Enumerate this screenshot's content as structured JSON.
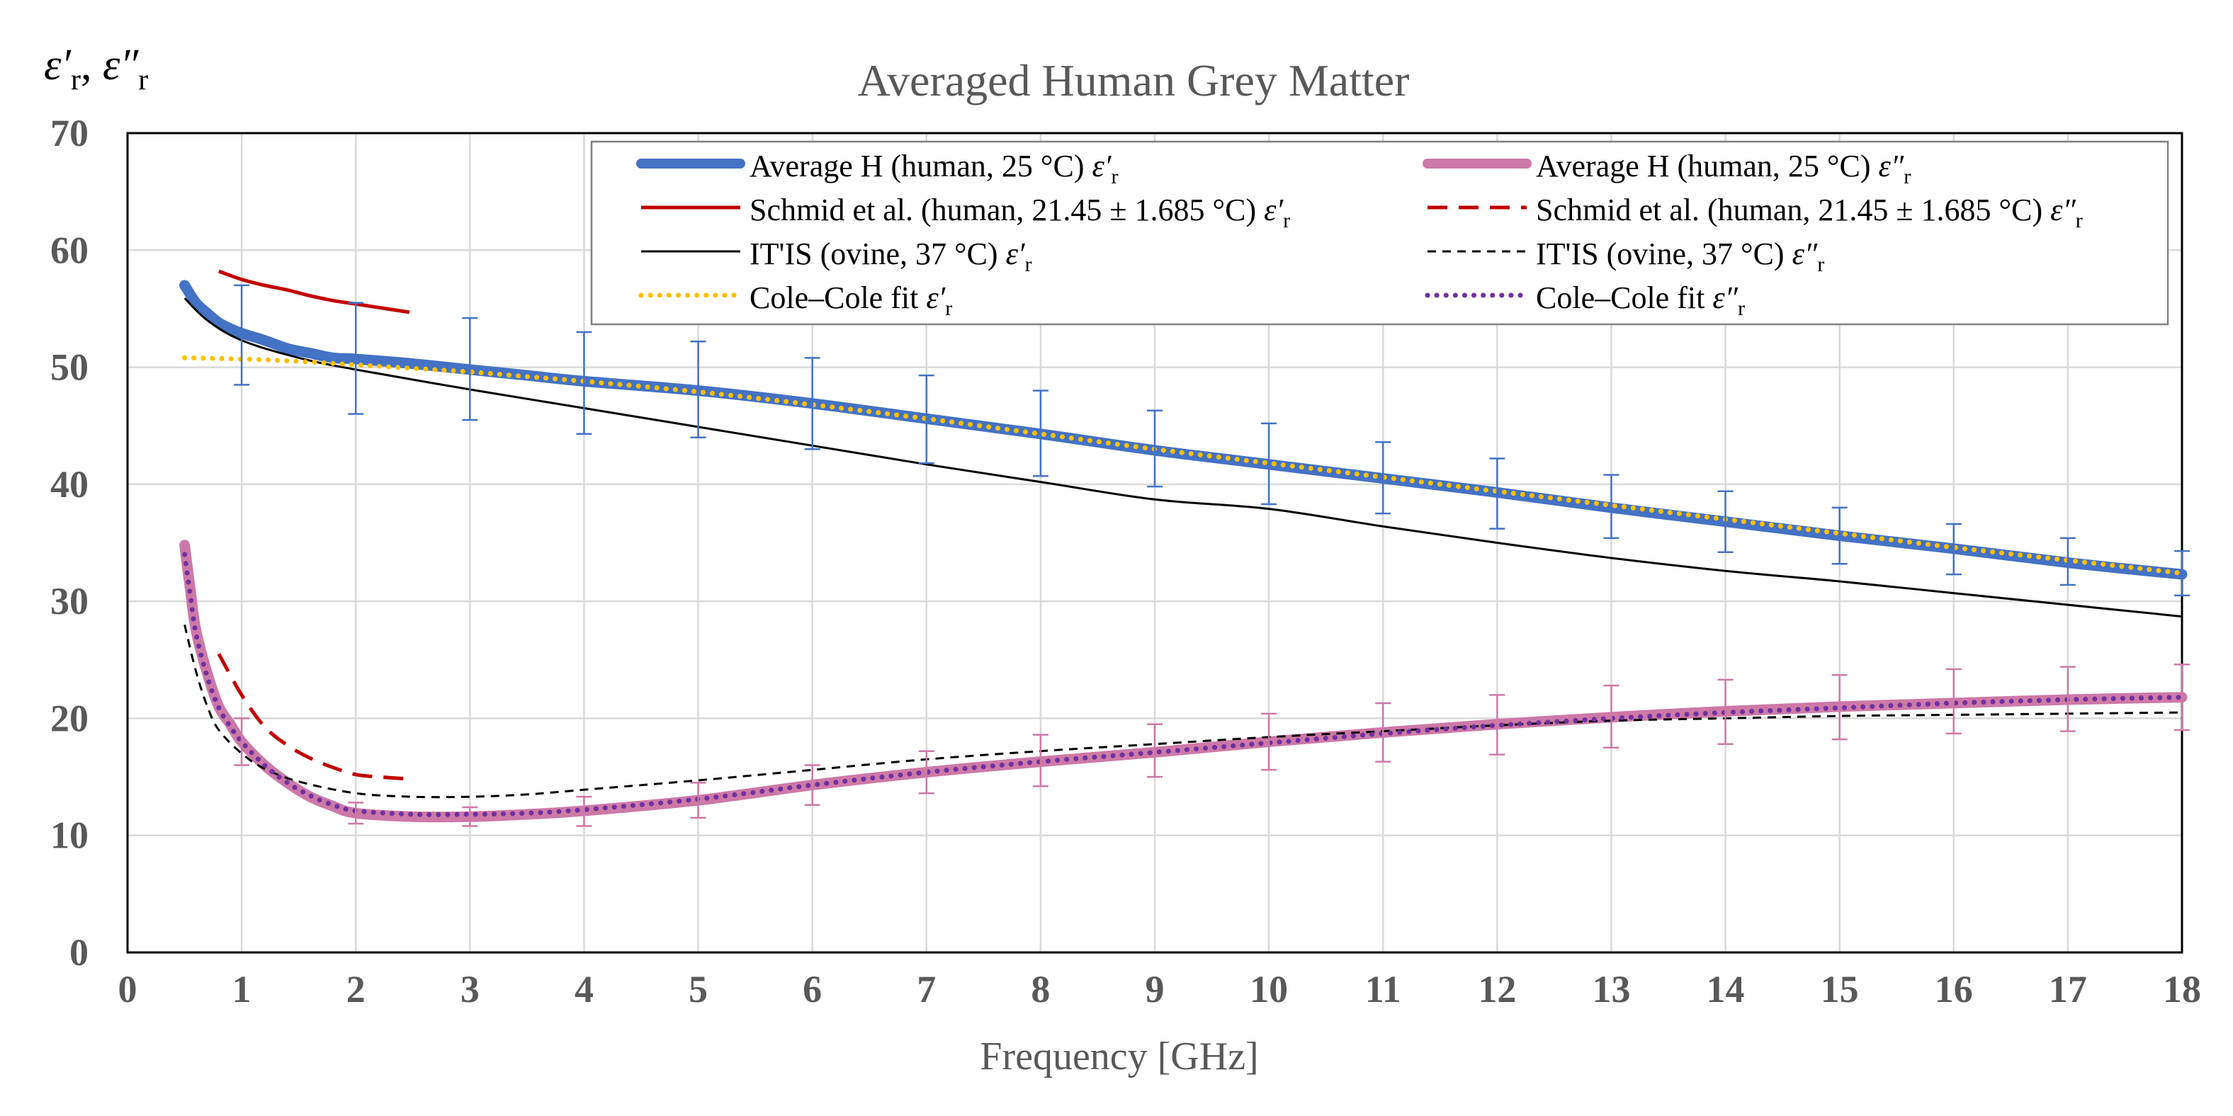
{
  "chart_data": {
    "type": "line",
    "title": "Averaged Human Grey Matter",
    "xlabel": "Frequency [GHz]",
    "ylabel": "ε′r, ε″r",
    "ylabel_parts": {
      "eps1": "ε′",
      "sub1": "r",
      "sep": ", ",
      "eps2": "ε″",
      "sub2": "r"
    },
    "xlim": [
      0,
      18
    ],
    "ylim": [
      0,
      70
    ],
    "xticks": [
      0,
      1,
      2,
      3,
      4,
      5,
      6,
      7,
      8,
      9,
      10,
      11,
      12,
      13,
      14,
      15,
      16,
      17,
      18
    ],
    "yticks": [
      0,
      10,
      20,
      30,
      40,
      50,
      60,
      70
    ],
    "grid": true,
    "legend_position": "top-right",
    "colors": {
      "blue": "#4472c4",
      "pink": "#cc79a7",
      "red": "#c00000",
      "black": "#000000",
      "gold": "#ffc000",
      "purple": "#7030a0",
      "grid": "#d9d9d9",
      "text": "#595959"
    },
    "series": [
      {
        "name": "Average H (human, 25 °C) ε′r",
        "legend_main": "Average H (human, 25 °C) ",
        "legend_sym": "ε′",
        "legend_sub": "r",
        "style": "thick-blue",
        "x": [
          0.5,
          0.6,
          0.7,
          0.8,
          0.9,
          1.0,
          1.2,
          1.4,
          1.6,
          1.8,
          2.0,
          2.5,
          3.0,
          3.5,
          4.0,
          5.0,
          6.0,
          7.0,
          8.0,
          9.0,
          10.0,
          11.0,
          12.0,
          13.0,
          14.0,
          15.0,
          16.0,
          17.0,
          18.0
        ],
        "y": [
          57.0,
          55.5,
          54.6,
          53.8,
          53.3,
          52.9,
          52.3,
          51.6,
          51.2,
          50.8,
          50.7,
          50.3,
          49.8,
          49.3,
          48.8,
          48.0,
          46.9,
          45.6,
          44.3,
          42.9,
          41.7,
          40.5,
          39.3,
          38.0,
          36.8,
          35.6,
          34.5,
          33.3,
          32.3
        ]
      },
      {
        "name": "Average H (human, 25 °C) ε″r",
        "legend_main": "Average H (human, 25 °C) ",
        "legend_sym": "ε″",
        "legend_sub": "r",
        "style": "thick-pink",
        "x": [
          0.5,
          0.55,
          0.6,
          0.7,
          0.8,
          0.9,
          1.0,
          1.2,
          1.4,
          1.6,
          1.8,
          2.0,
          2.5,
          3.0,
          3.5,
          4.0,
          5.0,
          6.0,
          7.0,
          8.0,
          9.0,
          10.0,
          11.0,
          12.0,
          13.0,
          14.0,
          15.0,
          16.0,
          17.0,
          18.0
        ],
        "y": [
          34.8,
          31.0,
          27.5,
          23.8,
          21.0,
          19.5,
          18.0,
          16.0,
          14.5,
          13.3,
          12.5,
          11.9,
          11.6,
          11.6,
          11.8,
          12.1,
          13.0,
          14.3,
          15.4,
          16.3,
          17.1,
          18.0,
          18.8,
          19.5,
          20.1,
          20.6,
          21.0,
          21.3,
          21.6,
          21.8
        ]
      },
      {
        "name": "Schmid et al. (human, 21.45 ± 1.685 °C) ε′r",
        "legend_main": "Schmid et al. (human, 21.45   ± 1.685 °C) ",
        "legend_sym": "ε′",
        "legend_sub": "r",
        "style": "solid-red",
        "x": [
          0.8,
          1.0,
          1.2,
          1.4,
          1.6,
          1.8,
          2.0,
          2.2,
          2.47
        ],
        "y": [
          58.2,
          57.5,
          57.0,
          56.6,
          56.1,
          55.7,
          55.4,
          55.1,
          54.7
        ]
      },
      {
        "name": "Schmid et al. (human, 21.45 ± 1.685 °C) ε″r",
        "legend_main": "Schmid et al. (human, 21.45   ± 1.685 °C) ",
        "legend_sym": "ε″",
        "legend_sub": "r",
        "style": "dashed-red",
        "x": [
          0.8,
          1.0,
          1.2,
          1.4,
          1.6,
          1.8,
          2.0,
          2.2,
          2.5
        ],
        "y": [
          25.5,
          22.0,
          19.3,
          17.7,
          16.6,
          15.8,
          15.2,
          15.0,
          14.8
        ]
      },
      {
        "name": "IT'IS (ovine, 37 °C) ε′r",
        "legend_main": "IT'IS (ovine, 37 °C) ",
        "legend_sym": "ε′",
        "legend_sub": "r",
        "style": "solid-black",
        "x": [
          0.5,
          0.7,
          1.0,
          1.5,
          2.0,
          3.0,
          4.0,
          5.0,
          6.0,
          7.0,
          8.0,
          9.0,
          10.0,
          11.0,
          12.0,
          13.0,
          14.0,
          15.0,
          16.0,
          17.0,
          18.0
        ],
        "y": [
          55.9,
          54.0,
          52.3,
          50.8,
          49.8,
          48.1,
          46.5,
          44.9,
          43.3,
          41.7,
          40.2,
          38.7,
          37.9,
          36.4,
          35.0,
          33.7,
          32.6,
          31.7,
          30.7,
          29.7,
          28.7
        ]
      },
      {
        "name": "IT'IS (ovine, 37 °C) ε″r",
        "legend_main": "IT'IS (ovine, 37 °C) ",
        "legend_sym": "ε″",
        "legend_sub": "r",
        "style": "dashed-black",
        "x": [
          0.5,
          0.6,
          0.7,
          0.8,
          1.0,
          1.2,
          1.5,
          2.0,
          2.5,
          3.0,
          3.5,
          4.0,
          5.0,
          6.0,
          7.0,
          8.0,
          9.0,
          10.0,
          11.0,
          12.0,
          13.0,
          14.0,
          15.0,
          16.0,
          17.0,
          18.0
        ],
        "y": [
          28.0,
          24.0,
          21.0,
          19.0,
          17.0,
          15.7,
          14.6,
          13.6,
          13.3,
          13.3,
          13.5,
          13.9,
          14.7,
          15.6,
          16.5,
          17.2,
          17.8,
          18.4,
          18.9,
          19.4,
          19.8,
          20.0,
          20.2,
          20.3,
          20.4,
          20.5
        ]
      },
      {
        "name": "Cole–Cole fit ε′r",
        "legend_main": "Cole–Cole fit  ",
        "legend_sym": "ε′",
        "legend_sub": "r",
        "style": "dotted-gold",
        "x": [
          0.5,
          1.0,
          1.5,
          2.0,
          2.5,
          3.0,
          3.5,
          4.0,
          5.0,
          6.0,
          7.0,
          8.0,
          9.0,
          10.0,
          11.0,
          12.0,
          13.0,
          14.0,
          15.0,
          16.0,
          17.0,
          18.0
        ],
        "y": [
          50.8,
          50.7,
          50.5,
          50.2,
          49.9,
          49.6,
          49.2,
          48.8,
          47.9,
          46.8,
          45.6,
          44.3,
          43.0,
          41.8,
          40.6,
          39.4,
          38.2,
          37.0,
          35.8,
          34.6,
          33.5,
          32.4
        ]
      },
      {
        "name": "Cole–Cole fit ε″r",
        "legend_main": "Cole–Cole fit  ",
        "legend_sym": "ε″",
        "legend_sub": "r",
        "style": "dotted-purple",
        "x": [
          0.5,
          0.55,
          0.6,
          0.7,
          0.8,
          0.9,
          1.0,
          1.2,
          1.4,
          1.6,
          1.8,
          2.0,
          2.5,
          3.0,
          3.5,
          4.0,
          5.0,
          6.0,
          7.0,
          8.0,
          9.0,
          10.0,
          11.0,
          12.0,
          13.0,
          14.0,
          15.0,
          16.0,
          17.0,
          18.0
        ],
        "y": [
          34.0,
          30.5,
          27.2,
          23.5,
          20.9,
          19.3,
          18.0,
          16.0,
          14.5,
          13.4,
          12.6,
          12.1,
          11.8,
          11.8,
          11.9,
          12.2,
          13.1,
          14.3,
          15.4,
          16.3,
          17.1,
          17.9,
          18.7,
          19.4,
          20.0,
          20.5,
          20.9,
          21.3,
          21.6,
          21.8
        ]
      }
    ],
    "error_bars": [
      {
        "series": "Average H (human, 25 °C) ε′r",
        "color": "blue",
        "x": [
          1,
          2,
          3,
          4,
          5,
          6,
          7,
          8,
          9,
          10,
          11,
          12,
          13,
          14,
          15,
          16,
          17,
          18
        ],
        "low": [
          48.5,
          46.0,
          45.5,
          44.3,
          44.0,
          43.0,
          41.8,
          40.7,
          39.8,
          38.3,
          37.5,
          36.2,
          35.4,
          34.2,
          33.2,
          32.3,
          31.4,
          30.5
        ],
        "high": [
          57.0,
          55.5,
          54.2,
          53.0,
          52.2,
          50.8,
          49.3,
          48.0,
          46.3,
          45.2,
          43.6,
          42.2,
          40.8,
          39.4,
          38.0,
          36.6,
          35.4,
          34.3
        ]
      },
      {
        "series": "Average H (human, 25 °C) ε″r",
        "color": "pink",
        "x": [
          1,
          2,
          3,
          4,
          5,
          6,
          7,
          8,
          9,
          10,
          11,
          12,
          13,
          14,
          15,
          16,
          17,
          18
        ],
        "low": [
          16.0,
          11.0,
          10.8,
          10.8,
          11.5,
          12.6,
          13.6,
          14.2,
          15.0,
          15.6,
          16.3,
          16.9,
          17.5,
          17.8,
          18.2,
          18.7,
          18.9,
          19.0
        ],
        "high": [
          20.0,
          12.8,
          12.4,
          13.3,
          14.5,
          16.0,
          17.2,
          18.6,
          19.5,
          20.4,
          21.3,
          22.0,
          22.8,
          23.3,
          23.7,
          24.2,
          24.4,
          24.6
        ]
      }
    ]
  }
}
